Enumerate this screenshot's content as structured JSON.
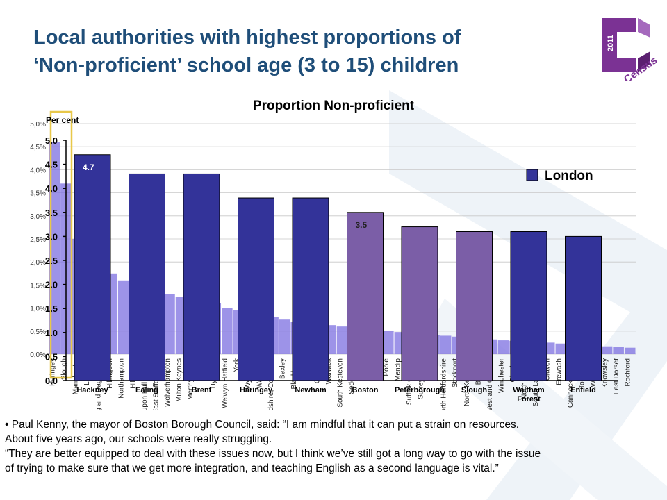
{
  "slide": {
    "title_line1": "Local authorities with highest proportions of",
    "title_line2": "‘Non-proficient’ school age (3 to 15) children",
    "logo": {
      "year": "2011",
      "word": "Census",
      "color": "#7b3294"
    },
    "quote_line1": "• Paul Kenny, the mayor of Boston Borough Council, said: “I am mindful that it can put a strain on resources.",
    "quote_line2": "About five years ago, our schools were really struggling.",
    "quote_line3": "“They are better equipped to deal with these issues now, but I think we’ve still got a long way to go with the issue",
    "quote_line4": "of trying to make sure that we get more integration, and teaching English as a second language is vital.”"
  },
  "chart_data": [
    {
      "type": "bar",
      "title": "",
      "ylabel": "",
      "ylim": [
        0,
        5.0
      ],
      "yticks": [
        "0,0%",
        "0,5%",
        "1,0%",
        "1,5%",
        "2,0%",
        "2,5%",
        "3,0%",
        "3,5%",
        "4,0%",
        "4,5%",
        "5,0%"
      ],
      "grid": true,
      "colors": {
        "bars": "#7c6fe0",
        "highlight": "#e8c84a"
      },
      "categories": [
        "Haringey",
        "Slough",
        "Manchester",
        "Lambeth",
        "Barking and Dagenham",
        "Hillingdon",
        "Northampton",
        "Hillingdon",
        "Kingston upon Hull, City of",
        "East Staffordshire",
        "Wolverhampton",
        "Milton Keynes",
        "Merthyr Tydfil",
        "Exeter",
        "Hyndburn",
        "Welwyn Hatfield",
        "York",
        "Wycombe",
        "Wakefield",
        "Herefordshire, County of",
        "Bexley",
        "Blackburn",
        "Forest",
        "Crawley",
        "Warwick",
        "South Kesteven",
        "Sedgemoor",
        "Swale",
        "Selby",
        "Poole",
        "Mendip",
        "Suffolk Coastal",
        "Surrey Heath",
        "Fylde",
        "North Hertfordshire",
        "Stockport",
        "North Kesteven",
        "Basildon",
        "Cheshire West and Chester",
        "Winchester",
        "Chorley",
        "North Norfolk",
        "South Lakeland",
        "Craven",
        "Erewash",
        "Cannock Chase",
        "Tonbridge",
        "Waverley",
        "Knowsley",
        "East Dorset",
        "Rochford"
      ],
      "values": [
        4.6,
        3.7,
        2.5,
        2.2,
        1.9,
        1.75,
        1.6,
        1.5,
        1.4,
        1.35,
        1.3,
        1.25,
        1.2,
        1.15,
        1.1,
        1.0,
        0.95,
        0.9,
        0.85,
        0.8,
        0.75,
        0.7,
        0.68,
        0.66,
        0.63,
        0.6,
        0.58,
        0.55,
        0.52,
        0.5,
        0.48,
        0.46,
        0.44,
        0.42,
        0.4,
        0.38,
        0.36,
        0.34,
        0.32,
        0.3,
        0.29,
        0.28,
        0.26,
        0.25,
        0.23,
        0.22,
        0.2,
        0.19,
        0.17,
        0.16,
        0.14
      ]
    },
    {
      "type": "bar",
      "title": "Proportion Non-proficient",
      "ylabel": "Per cent",
      "ylim": [
        0,
        5.0
      ],
      "yticks": [
        "0.0",
        "0.5",
        "1.0",
        "1.5",
        "2.0",
        "2.5",
        "3.0",
        "3.5",
        "4.0",
        "4.5",
        "5.0"
      ],
      "legend": {
        "label": "London",
        "position": "right"
      },
      "categories": [
        "Hackney",
        "Ealing",
        "Brent",
        "Haringey",
        "Newham",
        "Boston",
        "Peterborough",
        "Slough",
        "Waltham Forest",
        "Enfield"
      ],
      "values": [
        4.7,
        4.3,
        4.3,
        3.8,
        3.8,
        3.5,
        3.2,
        3.1,
        3.1,
        3.0
      ],
      "data_labels": [
        "4.7",
        "",
        "",
        "",
        "",
        "3.5",
        "",
        "",
        "",
        ""
      ],
      "colors": [
        "#333399",
        "#333399",
        "#333399",
        "#333399",
        "#333399",
        "#7b5ea7",
        "#7b5ea7",
        "#7b5ea7",
        "#333399",
        "#333399"
      ]
    }
  ]
}
